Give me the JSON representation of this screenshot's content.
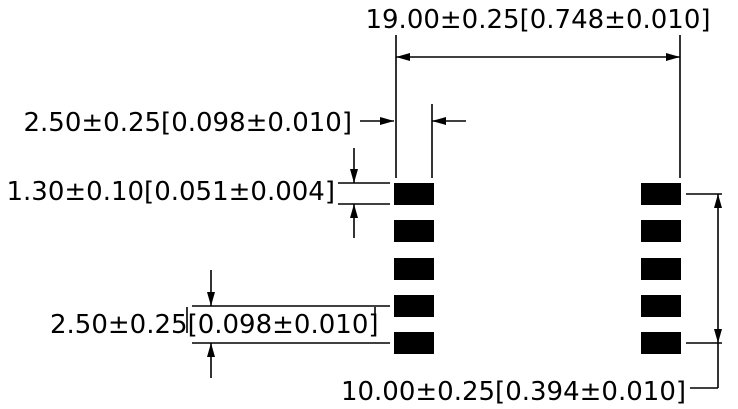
{
  "dimensions": {
    "pitch_horizontal": "19.00±0.25[0.748±0.010]",
    "pad_width": "2.50±0.25[0.098±0.010]",
    "pad_height": "1.30±0.10[0.051±0.004]",
    "pad_pitch_vertical": "2.50±0.25[0.098±0.010]",
    "row_span_vertical": "10.00±0.25[0.394±0.010]"
  },
  "layout": {
    "pads_per_column": 5,
    "columns": 2
  }
}
